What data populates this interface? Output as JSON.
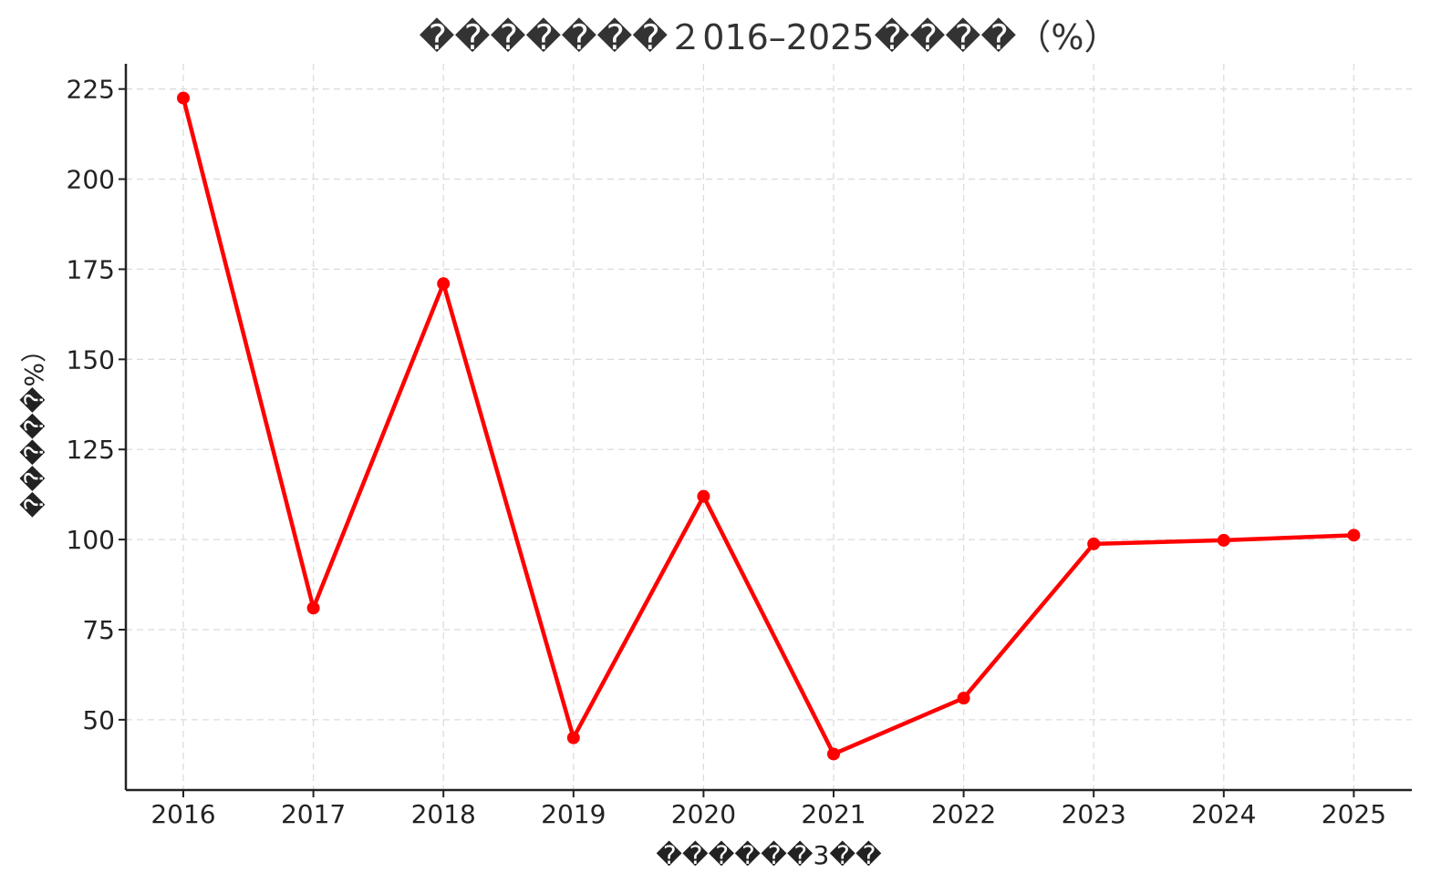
{
  "chart_data": {
    "type": "line",
    "title": "�������２016–2025����（%）",
    "xlabel": "������3��",
    "ylabel": "�����%）",
    "x": [
      "2016",
      "2017",
      "2018",
      "2019",
      "2020",
      "2021",
      "2022",
      "2023",
      "2024",
      "2025"
    ],
    "series": [
      {
        "values": [
          222.5,
          81,
          171,
          45,
          112,
          40.5,
          56,
          98.8,
          99.8,
          101.2
        ]
      }
    ],
    "yticks": [
      50,
      75,
      100,
      125,
      150,
      175,
      200,
      225
    ],
    "ylim": [
      30.5,
      232
    ],
    "grid": true,
    "colors": {
      "line": "#ff0000",
      "marker": "#ff0000",
      "grid": "#dcdcdc",
      "axis": "#222222"
    }
  }
}
